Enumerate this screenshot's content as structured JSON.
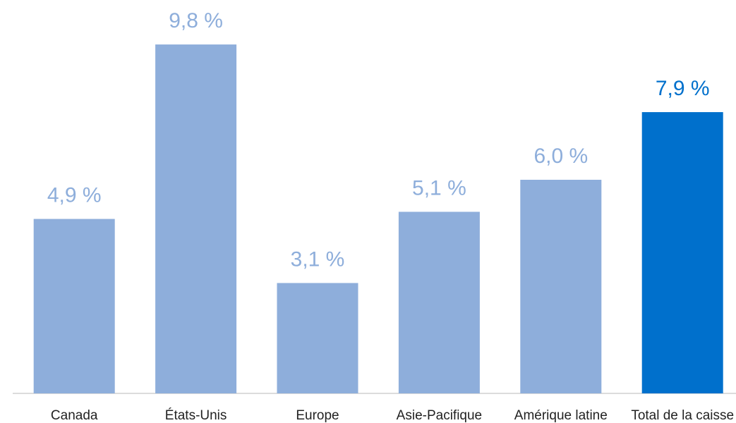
{
  "chart_data": {
    "type": "bar",
    "categories": [
      "Canada",
      "États-Unis",
      "Europe",
      "Asie-Pacifique",
      "Amérique latine",
      "Total de la caisse"
    ],
    "values": [
      4.9,
      9.8,
      3.1,
      5.1,
      6.0,
      7.9
    ],
    "value_labels": [
      "4,9 %",
      "9,8 %",
      "3,1 %",
      "5,1 %",
      "6,0 %",
      "7,9 %"
    ],
    "colors": [
      "#8eaedb",
      "#8eaedb",
      "#8eaedb",
      "#8eaedb",
      "#8eaedb",
      "#0070cc"
    ]
  }
}
